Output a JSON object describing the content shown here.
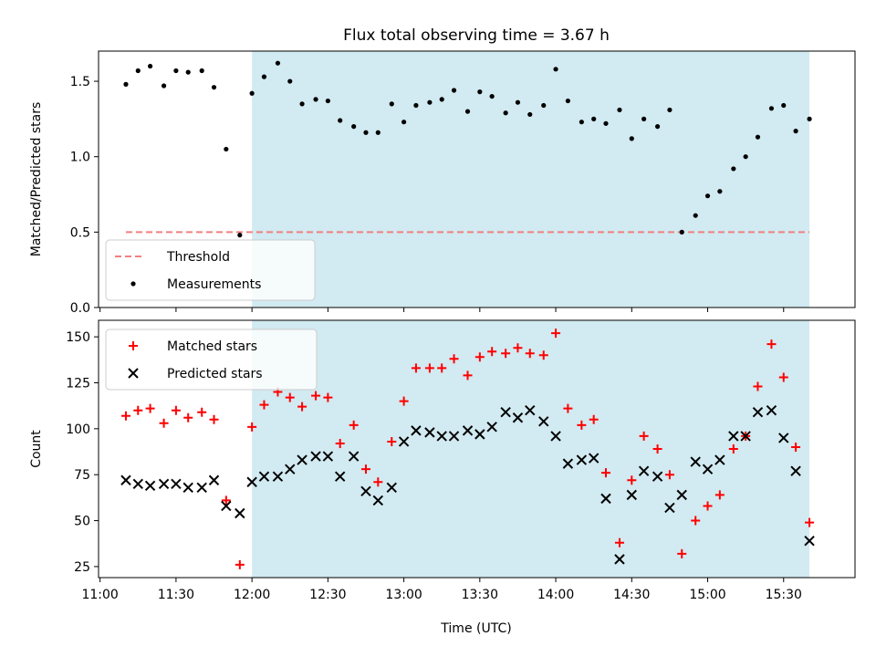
{
  "chart_data": {
    "title": "Flux total observing time = 3.67 h",
    "xlabel": "Time (UTC)",
    "x_ticks": [
      "11:00",
      "11:30",
      "12:00",
      "12:30",
      "13:00",
      "13:30",
      "14:00",
      "14:30",
      "15:00",
      "15:30"
    ],
    "x_tick_hours": [
      11.0,
      11.5,
      12.0,
      12.5,
      13.0,
      13.5,
      14.0,
      14.5,
      15.0,
      15.5
    ],
    "x_range_hours": [
      10.99,
      15.97
    ],
    "observing_window_hours": [
      12.0,
      15.67
    ],
    "shade_color": "#add8e6",
    "panels": [
      {
        "type": "scatter",
        "ylabel": "Matched/Predicted stars",
        "ylim": [
          0,
          1.7
        ],
        "y_ticks": [
          "0.0",
          "0.5",
          "1.0",
          "1.5"
        ],
        "threshold": {
          "label": "Threshold",
          "value": 0.5,
          "x_range": [
            11.17,
            15.67
          ],
          "color": "#f08080"
        },
        "legend": {
          "placement": "lower-left",
          "entries": [
            "Threshold",
            "Measurements"
          ]
        },
        "series": [
          {
            "name": "Measurements",
            "color": "#000000",
            "marker": "dot",
            "x": [
              11.17,
              11.25,
              11.33,
              11.42,
              11.5,
              11.58,
              11.67,
              11.75,
              11.83,
              11.92,
              12.0,
              12.08,
              12.17,
              12.25,
              12.33,
              12.42,
              12.5,
              12.58,
              12.67,
              12.75,
              12.83,
              12.92,
              13.0,
              13.08,
              13.17,
              13.25,
              13.33,
              13.42,
              13.5,
              13.58,
              13.67,
              13.75,
              13.83,
              13.92,
              14.0,
              14.08,
              14.17,
              14.25,
              14.33,
              14.42,
              14.5,
              14.58,
              14.67,
              14.75,
              14.83,
              14.92,
              15.0,
              15.08,
              15.17,
              15.25,
              15.33,
              15.42,
              15.5,
              15.58,
              15.67
            ],
            "y": [
              1.48,
              1.57,
              1.6,
              1.47,
              1.57,
              1.56,
              1.57,
              1.46,
              1.05,
              0.48,
              1.42,
              1.53,
              1.62,
              1.5,
              1.35,
              1.38,
              1.37,
              1.24,
              1.2,
              1.16,
              1.16,
              1.35,
              1.23,
              1.34,
              1.36,
              1.38,
              1.44,
              1.3,
              1.43,
              1.4,
              1.29,
              1.36,
              1.28,
              1.34,
              1.58,
              1.37,
              1.23,
              1.25,
              1.22,
              1.31,
              1.12,
              1.25,
              1.2,
              1.31,
              0.5,
              0.61,
              0.74,
              0.77,
              0.92,
              1.0,
              1.13,
              1.32,
              1.34,
              1.17,
              1.25
            ]
          }
        ]
      },
      {
        "type": "scatter",
        "ylabel": "Count",
        "ylim": [
          19,
          159
        ],
        "y_ticks": [
          "25",
          "50",
          "75",
          "100",
          "125",
          "150"
        ],
        "legend": {
          "placement": "upper-left",
          "entries": [
            "Matched stars",
            "Predicted stars"
          ]
        },
        "series": [
          {
            "name": "Matched stars",
            "color": "#ff0000",
            "marker": "plus",
            "x": [
              11.17,
              11.25,
              11.33,
              11.42,
              11.5,
              11.58,
              11.67,
              11.75,
              11.83,
              11.92,
              12.0,
              12.08,
              12.17,
              12.25,
              12.33,
              12.42,
              12.5,
              12.58,
              12.67,
              12.75,
              12.83,
              12.92,
              13.0,
              13.08,
              13.17,
              13.25,
              13.33,
              13.42,
              13.5,
              13.58,
              13.67,
              13.75,
              13.83,
              13.92,
              14.0,
              14.08,
              14.17,
              14.25,
              14.33,
              14.42,
              14.5,
              14.58,
              14.67,
              14.75,
              14.83,
              14.92,
              15.0,
              15.08,
              15.17,
              15.25,
              15.33,
              15.42,
              15.5,
              15.58,
              15.67
            ],
            "y": [
              107,
              110,
              111,
              103,
              110,
              106,
              109,
              105,
              61,
              26,
              101,
              113,
              120,
              117,
              112,
              118,
              117,
              92,
              102,
              78,
              71,
              93,
              115,
              133,
              133,
              133,
              138,
              129,
              139,
              142,
              141,
              144,
              141,
              140,
              152,
              111,
              102,
              105,
              76,
              38,
              72,
              96,
              89,
              75,
              32,
              50,
              58,
              64,
              89,
              96,
              123,
              146,
              128,
              90,
              49
            ]
          },
          {
            "name": "Predicted stars",
            "color": "#000000",
            "marker": "x",
            "x": [
              11.17,
              11.25,
              11.33,
              11.42,
              11.5,
              11.58,
              11.67,
              11.75,
              11.83,
              11.92,
              12.0,
              12.08,
              12.17,
              12.25,
              12.33,
              12.42,
              12.5,
              12.58,
              12.67,
              12.75,
              12.83,
              12.92,
              13.0,
              13.08,
              13.17,
              13.25,
              13.33,
              13.42,
              13.5,
              13.58,
              13.67,
              13.75,
              13.83,
              13.92,
              14.0,
              14.08,
              14.17,
              14.25,
              14.33,
              14.42,
              14.5,
              14.58,
              14.67,
              14.75,
              14.83,
              14.92,
              15.0,
              15.08,
              15.17,
              15.25,
              15.33,
              15.42,
              15.5,
              15.58,
              15.67
            ],
            "y": [
              72,
              70,
              69,
              70,
              70,
              68,
              68,
              72,
              58,
              54,
              71,
              74,
              74,
              78,
              83,
              85,
              85,
              74,
              85,
              66,
              61,
              68,
              93,
              99,
              98,
              96,
              96,
              99,
              97,
              101,
              109,
              106,
              110,
              104,
              96,
              81,
              83,
              84,
              62,
              29,
              64,
              77,
              74,
              57,
              64,
              82,
              78,
              83,
              96,
              96,
              109,
              110,
              95,
              77,
              39
            ]
          }
        ]
      }
    ]
  }
}
